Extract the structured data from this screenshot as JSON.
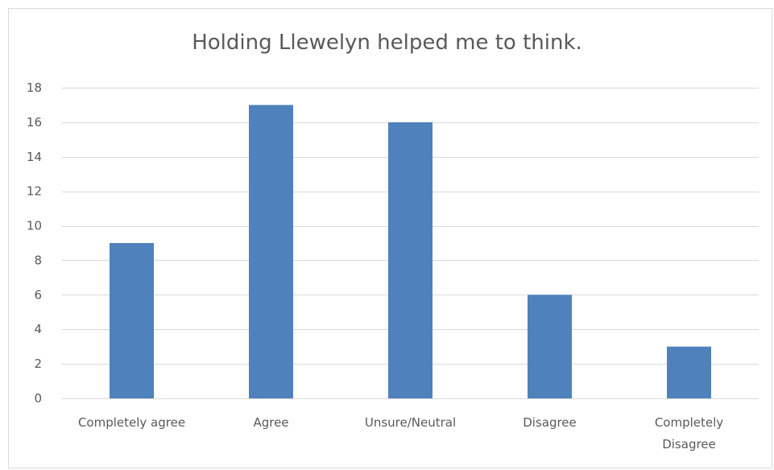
{
  "chart_data": {
    "type": "bar",
    "title": "Holding Llewelyn helped me to think.",
    "xlabel": "",
    "ylabel": "",
    "categories": [
      "Completely agree",
      "Agree",
      "Unsure/Neutral",
      "Disagree",
      "Completely Disagree"
    ],
    "values": [
      9,
      17,
      16,
      6,
      3
    ],
    "ylim": [
      0,
      18
    ],
    "yticks": [
      0,
      2,
      4,
      6,
      8,
      10,
      12,
      14,
      16,
      18
    ],
    "grid": true,
    "legend": "none",
    "bar_color": "#4f81bd",
    "grid_color": "#d9d9d9"
  }
}
